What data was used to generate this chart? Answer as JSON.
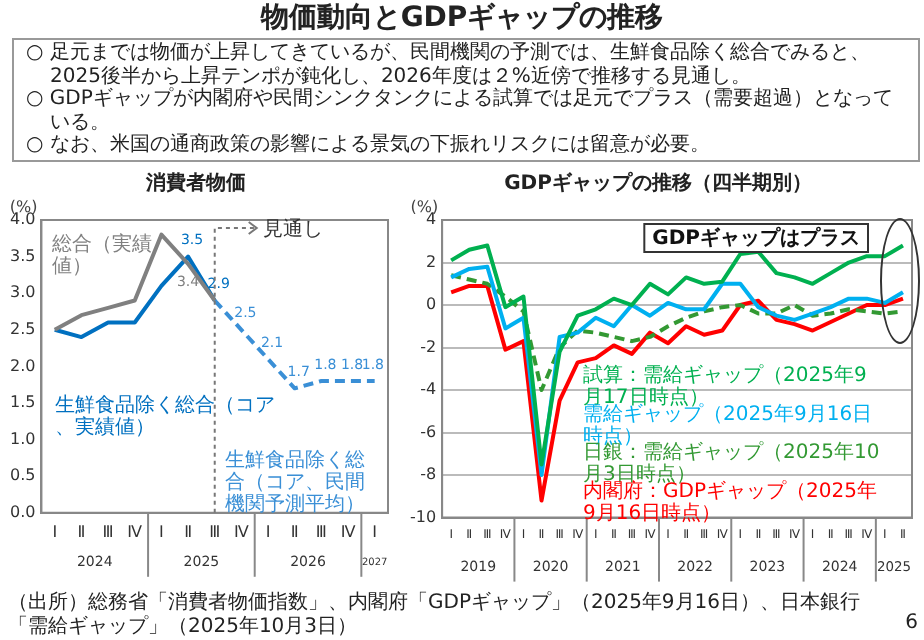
{
  "chart_data": [
    {
      "type": "other",
      "title": "物価動向とGDPギャップの推移",
      "annotations": [
        "○ 足元までは物価が上昇してきているが、民間機関の予測では、生鮮食品除く総合でみると、2025後半から上昇テンポが鈍化し、2026年度は２%近傍で推移する見通し。",
        "○ GDPギャップが内閣府や民間シンクタンクによる試算では足元でプラス（需要超過）となっている。",
        "○ なお、米国の通商政策の影響による景気の下振れリスクには留意が必要。",
        "（出所）総務省「消費者物価指数」、内閣府「GDPギャップ」（2025年9月16日）、日本銀行「需給ギャップ」（2025年10月3日）",
        "6"
      ]
    },
    {
      "type": "line",
      "title": "消費者物価",
      "ylabel": "(%)",
      "categories": [
        "Ⅰ",
        "Ⅱ",
        "Ⅲ",
        "Ⅳ",
        "Ⅰ",
        "Ⅱ",
        "Ⅲ",
        "Ⅳ",
        "Ⅰ",
        "Ⅱ",
        "Ⅲ",
        "Ⅳ",
        "Ⅰ"
      ],
      "ylim": [
        0,
        4
      ],
      "yticks": [
        {
          "value": 0,
          "label": "0.0"
        },
        0.5,
        {
          "value": 1,
          "label": "1.0"
        },
        1.5,
        {
          "value": 2,
          "label": "2.0"
        },
        2.5,
        {
          "value": 3,
          "label": "3.0"
        },
        3.5,
        {
          "value": 4,
          "label": "4.0"
        }
      ],
      "series": [
        {
          "name": "総合（実績値）",
          "color": "#808080",
          "values": [
            2.5,
            2.7,
            2.8,
            2.9,
            3.8,
            3.4,
            2.9,
            null,
            null,
            null,
            null,
            null,
            null
          ],
          "value_labels": [
            null,
            null,
            null,
            null,
            null,
            "3.4",
            null,
            null,
            null,
            null,
            null,
            null,
            null
          ]
        },
        {
          "name": "生鮮食品除く総合（コア、実績値）",
          "color": "#0070c0",
          "values": [
            2.5,
            2.4,
            2.6,
            2.6,
            3.1,
            3.5,
            2.9,
            null,
            null,
            null,
            null,
            null,
            null
          ],
          "value_labels": [
            null,
            null,
            null,
            null,
            null,
            "3.5",
            "2.9",
            null,
            null,
            null,
            null,
            null,
            null
          ]
        },
        {
          "name": "生鮮食品除く総合（コア、民間機関予測平均）",
          "color": "#3a8fd6",
          "line_style": "dashed",
          "values": [
            null,
            null,
            null,
            null,
            null,
            null,
            2.9,
            2.5,
            2.1,
            1.7,
            1.8,
            1.8,
            1.8
          ],
          "value_labels": [
            null,
            null,
            null,
            null,
            null,
            null,
            null,
            "2.5",
            "2.1",
            "1.7",
            "1.8",
            "1.8",
            "1.8"
          ]
        }
      ],
      "annotations": [
        "見通し",
        "2024",
        "2025",
        "2026",
        "2027"
      ]
    },
    {
      "type": "line",
      "title": "GDPギャップの推移（四半期別）",
      "ylabel": "(%)",
      "categories": [
        "Ⅰ",
        "Ⅱ",
        "Ⅲ",
        "Ⅳ",
        "Ⅰ",
        "Ⅱ",
        "Ⅲ",
        "Ⅳ",
        "Ⅰ",
        "Ⅱ",
        "Ⅲ",
        "Ⅳ",
        "Ⅰ",
        "Ⅱ",
        "Ⅲ",
        "Ⅳ",
        "Ⅰ",
        "Ⅱ",
        "Ⅲ",
        "Ⅳ",
        "Ⅰ",
        "Ⅱ",
        "Ⅲ",
        "Ⅳ",
        "Ⅰ",
        "Ⅱ"
      ],
      "ylim": [
        -10,
        4
      ],
      "yticks": [
        -10,
        -8,
        -6,
        -4,
        -2,
        0,
        2,
        4
      ],
      "grid": "y",
      "series": [
        {
          "name": "試算：需給ギャップ（2025年9月17日時点）",
          "color": "#00b050",
          "values": [
            2.1,
            2.6,
            2.8,
            -0.1,
            0.4,
            -7.5,
            -2.2,
            -0.5,
            -0.2,
            0.3,
            0,
            1.0,
            0.5,
            1.3,
            1.0,
            1.1,
            2.4,
            2.5,
            1.5,
            1.3,
            1.0,
            1.5,
            2.0,
            2.3,
            2.3,
            2.8
          ]
        },
        {
          "name": "需給ギャップ（2025年9月16日時点）",
          "color": "#00b0f0",
          "values": [
            1.3,
            1.7,
            1.8,
            -1.1,
            -0.6,
            -8.0,
            -1.5,
            -1.3,
            -0.6,
            -1.0,
            0,
            -0.5,
            0.1,
            -0.2,
            -0.2,
            1.0,
            1.0,
            -0.1,
            -0.5,
            -0.7,
            -0.4,
            -0.1,
            0.3,
            0.3,
            0.1,
            0.6
          ]
        },
        {
          "name": "日銀：需給ギャップ（2025年10月3日時点）",
          "color": "#339933",
          "line_style": "dashed",
          "values": [
            1.4,
            1.2,
            1.0,
            0.4,
            -0.3,
            -4.0,
            -2.0,
            -1.2,
            -1.3,
            -1.5,
            -1.7,
            -1.5,
            -1.0,
            -0.6,
            -0.3,
            -0.1,
            0,
            -0.4,
            -0.4,
            0,
            -0.5,
            -0.4,
            -0.2,
            -0.3,
            -0.4,
            -0.3
          ]
        },
        {
          "name": "内閣府：GDPギャップ（2025年9月16日時点）",
          "color": "#ff0000",
          "values": [
            0.6,
            0.9,
            0.9,
            -2.1,
            -1.7,
            -9.2,
            -4.5,
            -2.7,
            -2.5,
            -1.9,
            -2.3,
            -1.3,
            -1.8,
            -1.0,
            -1.4,
            -1.2,
            0,
            0.2,
            -0.7,
            -0.9,
            -1.2,
            -0.8,
            -0.4,
            0,
            0,
            0.3
          ]
        }
      ],
      "annotations": [
        "GDPギャップはプラス",
        "2019",
        "2020",
        "2021",
        "2022",
        "2023",
        "2024",
        "2025"
      ]
    }
  ]
}
